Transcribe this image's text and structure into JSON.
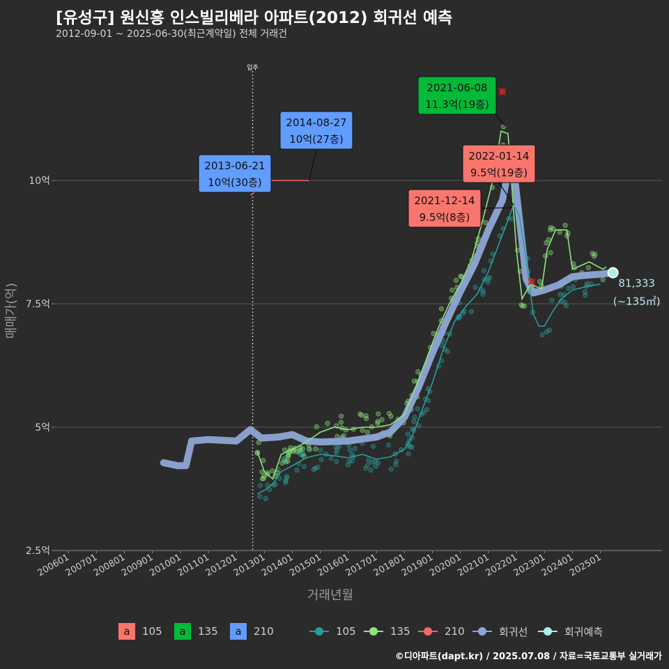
{
  "title": "[유성구] 원신흥 인스빌리베라 아파트(2012) 회귀선 예측",
  "subtitle": "2012-09-01 ~ 2025-06-30(최근계약일) 전체 거래건",
  "caption": "©디아파트(dapt.kr) / 2025.07.08 / 자료=국토교통부 실거래가",
  "colors": {
    "bg": "#2b2b2b",
    "grid": "#5a5a5a",
    "s105": "#2a9d99",
    "s135": "#8ee57d",
    "s210": "#f06a63",
    "regression": "#8ea6d6",
    "forecast": "#a9f0e6",
    "box105": "#f8766d",
    "box135": "#00ba38",
    "box210": "#619cff"
  },
  "legend": {
    "boxes": [
      {
        "key": "a",
        "label": "105"
      },
      {
        "key": "a",
        "label": "135"
      },
      {
        "key": "a",
        "label": "210"
      }
    ],
    "lines": [
      {
        "label": "105"
      },
      {
        "label": "135"
      },
      {
        "label": "210"
      },
      {
        "label": "회귀선"
      },
      {
        "label": "회귀예측"
      }
    ]
  },
  "chart_data": {
    "type": "scatter",
    "title": "[유성구] 원신흥 인스빌리베라 아파트(2012) 회귀선 예측",
    "xlabel": "거래년월",
    "ylabel": "매매가(억)",
    "xlim": [
      2005.5,
      2027.2
    ],
    "ylim": [
      2.5,
      12.5
    ],
    "x_ticks": [
      "200601",
      "200701",
      "200801",
      "200901",
      "201001",
      "201101",
      "201201",
      "201301",
      "201401",
      "201501",
      "201601",
      "201701",
      "201801",
      "201901",
      "202001",
      "202101",
      "202201",
      "202301",
      "202401",
      "202501"
    ],
    "y_ticks": [
      {
        "value": 2.5,
        "label": "2.5억"
      },
      {
        "value": 5,
        "label": "5억"
      },
      {
        "value": 7.5,
        "label": "7.5억"
      },
      {
        "value": 10,
        "label": "10억"
      }
    ],
    "vline": {
      "x": 2012.58,
      "label": "입주"
    },
    "series": [
      {
        "name": "105",
        "color_key": "s105",
        "points": [
          [
            2012.75,
            3.65
          ],
          [
            2013.0,
            3.72
          ],
          [
            2013.3,
            3.85
          ],
          [
            2013.6,
            4.1
          ],
          [
            2014.0,
            4.22
          ],
          [
            2014.5,
            4.38
          ],
          [
            2015.0,
            4.45
          ],
          [
            2015.5,
            4.42
          ],
          [
            2016.0,
            4.38
          ],
          [
            2016.5,
            4.45
          ],
          [
            2017.0,
            4.35
          ],
          [
            2017.5,
            4.4
          ],
          [
            2018.0,
            4.55
          ],
          [
            2018.3,
            4.85
          ],
          [
            2018.6,
            5.3
          ],
          [
            2019.0,
            5.9
          ],
          [
            2019.4,
            6.6
          ],
          [
            2019.8,
            7.15
          ],
          [
            2020.2,
            7.45
          ],
          [
            2020.6,
            7.7
          ],
          [
            2021.0,
            8.15
          ],
          [
            2021.5,
            8.9
          ],
          [
            2021.9,
            9.5
          ],
          [
            2022.1,
            9.3
          ],
          [
            2022.3,
            8.6
          ],
          [
            2022.6,
            7.3
          ],
          [
            2022.8,
            7.05
          ],
          [
            2023.0,
            7.05
          ],
          [
            2023.3,
            7.35
          ],
          [
            2023.6,
            7.6
          ],
          [
            2024.0,
            7.78
          ],
          [
            2024.5,
            7.85
          ],
          [
            2025.0,
            7.9
          ]
        ]
      },
      {
        "name": "135",
        "color_key": "s135",
        "points": [
          [
            2012.75,
            4.5
          ],
          [
            2013.0,
            4.1
          ],
          [
            2013.3,
            3.95
          ],
          [
            2013.6,
            4.45
          ],
          [
            2014.0,
            4.55
          ],
          [
            2014.5,
            4.7
          ],
          [
            2015.0,
            4.9
          ],
          [
            2015.5,
            5.0
          ],
          [
            2016.0,
            4.95
          ],
          [
            2016.5,
            5.0
          ],
          [
            2017.0,
            5.0
          ],
          [
            2017.5,
            5.05
          ],
          [
            2018.0,
            5.25
          ],
          [
            2018.4,
            5.8
          ],
          [
            2018.8,
            6.4
          ],
          [
            2019.2,
            7.0
          ],
          [
            2019.6,
            7.5
          ],
          [
            2020.0,
            7.9
          ],
          [
            2020.4,
            8.4
          ],
          [
            2020.8,
            9.2
          ],
          [
            2021.2,
            10.1
          ],
          [
            2021.45,
            11.0
          ],
          [
            2021.7,
            10.95
          ],
          [
            2022.0,
            8.6
          ],
          [
            2022.2,
            7.6
          ],
          [
            2022.5,
            7.9
          ],
          [
            2022.9,
            7.8
          ],
          [
            2023.1,
            8.6
          ],
          [
            2023.4,
            9.0
          ],
          [
            2023.8,
            9.0
          ],
          [
            2024.0,
            8.2
          ],
          [
            2024.6,
            8.35
          ],
          [
            2025.1,
            8.2
          ],
          [
            2025.2,
            8.25
          ]
        ]
      },
      {
        "name": "210",
        "color_key": "s210",
        "points": [
          [
            2012.5,
            9.7
          ],
          [
            2012.75,
            9.8
          ],
          [
            2013.0,
            10.0
          ],
          [
            2013.2,
            10.0
          ],
          [
            2014.0,
            10.0
          ],
          [
            2014.6,
            10.0
          ]
        ]
      },
      {
        "name": "회귀선",
        "color_key": "regression",
        "points": [
          [
            2009.4,
            4.28
          ],
          [
            2009.9,
            4.22
          ],
          [
            2010.2,
            4.22
          ],
          [
            2010.4,
            4.72
          ],
          [
            2011.0,
            4.75
          ],
          [
            2012.0,
            4.72
          ],
          [
            2012.5,
            4.95
          ],
          [
            2012.9,
            4.78
          ],
          [
            2013.5,
            4.8
          ],
          [
            2014.0,
            4.85
          ],
          [
            2014.5,
            4.72
          ],
          [
            2015.0,
            4.7
          ],
          [
            2016.0,
            4.72
          ],
          [
            2017.0,
            4.8
          ],
          [
            2017.5,
            4.9
          ],
          [
            2018.0,
            5.2
          ],
          [
            2018.5,
            5.8
          ],
          [
            2019.0,
            6.5
          ],
          [
            2019.5,
            7.15
          ],
          [
            2020.0,
            7.75
          ],
          [
            2020.5,
            8.3
          ],
          [
            2021.0,
            9.0
          ],
          [
            2021.5,
            9.6
          ],
          [
            2021.75,
            10.3
          ],
          [
            2021.95,
            10.0
          ],
          [
            2022.15,
            9.0
          ],
          [
            2022.35,
            8.0
          ],
          [
            2022.6,
            7.72
          ],
          [
            2023.0,
            7.78
          ],
          [
            2023.5,
            7.88
          ],
          [
            2024.0,
            8.05
          ],
          [
            2024.5,
            8.08
          ],
          [
            2025.0,
            8.1
          ],
          [
            2025.3,
            8.12
          ]
        ]
      },
      {
        "name": "회귀예측",
        "color_key": "forecast",
        "points": [
          [
            2025.45,
            8.13
          ]
        ]
      }
    ],
    "highlight_marks": [
      [
        2021.0,
        10.5
      ],
      [
        2021.5,
        11.8
      ],
      [
        2022.55,
        7.95
      ]
    ],
    "annotations": [
      {
        "date": "2013-06-21",
        "text": "10억(30층)",
        "color_key": "box210",
        "x": 2012.7,
        "y": 9.95
      },
      {
        "date": "2014-08-27",
        "text": "10억(27층)",
        "color_key": "box210",
        "x": 2014.6,
        "y": 10.0
      },
      {
        "date": "2021-06-08",
        "text": "11.3억(19층)",
        "color_key": "box135",
        "x": 2021.6,
        "y": 11.1
      },
      {
        "date": "2022-01-14",
        "text": "9.5억(19층)",
        "color_key": "box105",
        "x": 2021.9,
        "y": 9.5
      },
      {
        "date": "2021-12-14",
        "text": "9.5억(8층)",
        "color_key": "box105",
        "x": 2021.85,
        "y": 9.45
      }
    ],
    "forecast_label": {
      "value": "81,333",
      "area": "(~135㎡)"
    }
  }
}
